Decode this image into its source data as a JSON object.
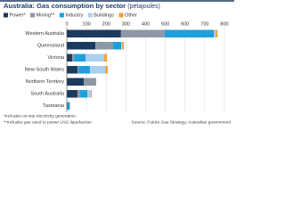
{
  "chart_data": {
    "type": "stacked-bar-horizontal",
    "title": "Australia: Gas consumption by sector",
    "subtitle": "(petajoules)",
    "categories": [
      "Western Australia",
      "Queensland",
      "Victoria",
      "New South Wales",
      "Northern Territory",
      "South Australia",
      "Tasmania"
    ],
    "series": [
      {
        "name": "Power*",
        "color": "#1c3a5e",
        "values": [
          275,
          145,
          27,
          54,
          86,
          54,
          3
        ]
      },
      {
        "name": "Mining**",
        "color": "#8d98a6",
        "values": [
          222,
          90,
          10,
          5,
          63,
          14,
          0
        ]
      },
      {
        "name": "Industry",
        "color": "#1ea0dc",
        "values": [
          250,
          41,
          58,
          59,
          0,
          36,
          12
        ]
      },
      {
        "name": "Buildings",
        "color": "#a9d0ec",
        "values": [
          8,
          5,
          95,
          77,
          0,
          18,
          2
        ]
      },
      {
        "name": "Other",
        "color": "#f0a23a",
        "values": [
          10,
          9,
          14,
          13,
          0,
          5,
          1
        ]
      }
    ],
    "xlim": [
      0,
      800
    ],
    "xticks": [
      0,
      100,
      200,
      300,
      400,
      500,
      600,
      700,
      800
    ],
    "grid": true,
    "footnotes": [
      "*Includes on-site electricity generation",
      "**Includes gas used to power LNG liquefaction"
    ],
    "source": "Source: Future Gas Strategy; Australian government"
  }
}
